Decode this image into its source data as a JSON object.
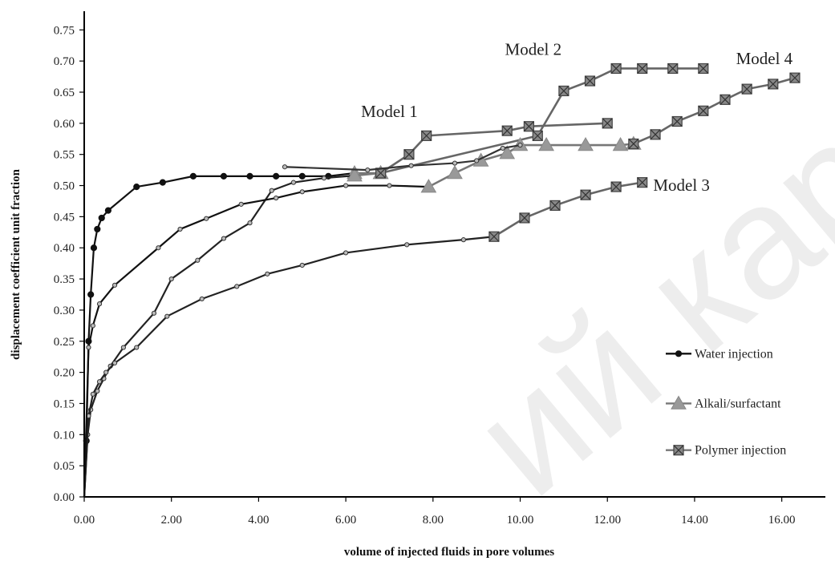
{
  "chart_data": {
    "type": "line",
    "xlabel": "volume  of injected  fluids in pore volumes",
    "ylabel": "displacement  coefficient  unit fraction",
    "xlim": [
      0,
      17
    ],
    "ylim": [
      0,
      0.78
    ],
    "x_ticks": [
      "0.00",
      "2.00",
      "4.00",
      "6.00",
      "8.00",
      "10.00",
      "12.00",
      "14.00",
      "16.00"
    ],
    "y_ticks": [
      "0.00",
      "0.05",
      "0.10",
      "0.15",
      "0.20",
      "0.25",
      "0.30",
      "0.35",
      "0.40",
      "0.45",
      "0.50",
      "0.55",
      "0.60",
      "0.65",
      "0.70",
      "0.75"
    ],
    "grid": false,
    "legend_position": "right",
    "legend": [
      {
        "label": "Water injection",
        "marker": "circle"
      },
      {
        "label": "Alkali/surfactant",
        "marker": "triangle"
      },
      {
        "label": "Polymer injection",
        "marker": "square-x"
      }
    ],
    "annotations": [
      "Model 1",
      "Model 2",
      "Model 3",
      "Model 4"
    ],
    "series": [
      {
        "model": "Model 1",
        "method": "Water injection",
        "color": "#111111",
        "marker": "circle",
        "points": [
          [
            0,
            0
          ],
          [
            0.05,
            0.09
          ],
          [
            0.1,
            0.25
          ],
          [
            0.15,
            0.325
          ],
          [
            0.22,
            0.4
          ],
          [
            0.3,
            0.43
          ],
          [
            0.4,
            0.448
          ],
          [
            0.55,
            0.46
          ],
          [
            1.2,
            0.498
          ],
          [
            1.8,
            0.505
          ],
          [
            2.5,
            0.515
          ],
          [
            3.2,
            0.515
          ],
          [
            3.8,
            0.515
          ],
          [
            4.4,
            0.515
          ],
          [
            5.0,
            0.515
          ],
          [
            5.6,
            0.515
          ],
          [
            6.2,
            0.52
          ]
        ]
      },
      {
        "model": "Model 1",
        "method": "Alkali/surfactant",
        "color": "#777777",
        "marker": "triangle",
        "points": [
          [
            6.2,
            0.52
          ],
          [
            6.8,
            0.52
          ]
        ]
      },
      {
        "model": "Model 1",
        "method": "Polymer injection",
        "color": "#666666",
        "marker": "square-x",
        "points": [
          [
            6.8,
            0.52
          ],
          [
            7.45,
            0.55
          ],
          [
            7.85,
            0.58
          ],
          [
            9.7,
            0.588
          ],
          [
            10.2,
            0.595
          ],
          [
            12.0,
            0.6
          ]
        ]
      },
      {
        "model": "Model 2",
        "method": "Water injection",
        "color": "#222222",
        "marker": "dot",
        "points": [
          [
            0,
            0
          ],
          [
            0.08,
            0.1
          ],
          [
            0.15,
            0.14
          ],
          [
            0.3,
            0.17
          ],
          [
            0.45,
            0.19
          ],
          [
            0.6,
            0.21
          ],
          [
            0.9,
            0.24
          ],
          [
            1.6,
            0.295
          ],
          [
            2.0,
            0.35
          ],
          [
            2.6,
            0.38
          ],
          [
            3.2,
            0.415
          ],
          [
            3.8,
            0.44
          ],
          [
            4.3,
            0.492
          ],
          [
            4.8,
            0.505
          ],
          [
            5.5,
            0.512
          ],
          [
            6.2,
            0.516
          ]
        ]
      },
      {
        "model": "Model 2",
        "method": "Alkali/surfactant",
        "color": "#777777",
        "marker": "triangle",
        "points": [
          [
            6.2,
            0.516
          ],
          [
            6.8,
            0.52
          ]
        ]
      },
      {
        "model": "Model 2",
        "method": "Polymer injection",
        "color": "#666666",
        "marker": "square-x",
        "points": [
          [
            6.8,
            0.52
          ],
          [
            10.4,
            0.58
          ],
          [
            11.0,
            0.652
          ],
          [
            11.6,
            0.668
          ],
          [
            12.2,
            0.688
          ],
          [
            12.8,
            0.688
          ],
          [
            13.5,
            0.688
          ],
          [
            14.2,
            0.688
          ]
        ]
      },
      {
        "model": "Model 3",
        "method": "Water injection",
        "color": "#222222",
        "marker": "dot",
        "points": [
          [
            0,
            0
          ],
          [
            0.1,
            0.13
          ],
          [
            0.2,
            0.165
          ],
          [
            0.35,
            0.185
          ],
          [
            0.5,
            0.2
          ],
          [
            0.7,
            0.215
          ],
          [
            1.2,
            0.24
          ],
          [
            1.9,
            0.29
          ],
          [
            2.7,
            0.318
          ],
          [
            3.5,
            0.338
          ],
          [
            4.2,
            0.358
          ],
          [
            5.0,
            0.372
          ],
          [
            6.0,
            0.392
          ],
          [
            7.4,
            0.405
          ],
          [
            8.7,
            0.413
          ],
          [
            9.4,
            0.418
          ]
        ]
      },
      {
        "model": "Model 3",
        "method": "Polymer injection",
        "color": "#666666",
        "marker": "square-x",
        "points": [
          [
            9.4,
            0.418
          ],
          [
            10.1,
            0.448
          ],
          [
            10.8,
            0.468
          ],
          [
            11.5,
            0.485
          ],
          [
            12.2,
            0.498
          ],
          [
            12.8,
            0.505
          ]
        ]
      },
      {
        "model": "Model 4",
        "method": "Water injection",
        "color": "#111111",
        "marker": "dot",
        "points": [
          [
            0,
            0
          ],
          [
            0.1,
            0.24
          ],
          [
            0.2,
            0.275
          ],
          [
            0.35,
            0.31
          ],
          [
            0.7,
            0.34
          ],
          [
            1.7,
            0.4
          ],
          [
            2.2,
            0.43
          ],
          [
            2.8,
            0.447
          ],
          [
            3.6,
            0.47
          ],
          [
            4.4,
            0.48
          ],
          [
            5.0,
            0.49
          ],
          [
            6.0,
            0.5
          ],
          [
            7.0,
            0.5
          ],
          [
            7.9,
            0.498
          ]
        ]
      },
      {
        "model": "Model 4",
        "method": "Alkali/surfactant",
        "color": "#777777",
        "marker": "triangle",
        "points": [
          [
            7.9,
            0.498
          ],
          [
            8.5,
            0.52
          ],
          [
            9.1,
            0.54
          ],
          [
            9.7,
            0.552
          ],
          [
            10.0,
            0.565
          ],
          [
            10.6,
            0.565
          ],
          [
            11.5,
            0.565
          ],
          [
            12.3,
            0.565
          ],
          [
            12.6,
            0.567
          ]
        ]
      },
      {
        "model": "Model 4",
        "method": "Polymer injection",
        "color": "#666666",
        "marker": "square-x",
        "points": [
          [
            12.6,
            0.567
          ],
          [
            13.1,
            0.582
          ],
          [
            13.6,
            0.603
          ],
          [
            14.2,
            0.62
          ],
          [
            14.7,
            0.638
          ],
          [
            15.2,
            0.655
          ],
          [
            15.8,
            0.663
          ],
          [
            16.3,
            0.673
          ]
        ]
      },
      {
        "model": "Model 4",
        "method": "Water injection",
        "color": "#333333",
        "marker": "dot",
        "points": [
          [
            4.6,
            0.53
          ],
          [
            6.5,
            0.525
          ],
          [
            7.5,
            0.532
          ],
          [
            8.5,
            0.536
          ],
          [
            9.0,
            0.54
          ],
          [
            9.6,
            0.56
          ],
          [
            10.0,
            0.565
          ]
        ]
      }
    ]
  },
  "watermark": "ий карГУ"
}
